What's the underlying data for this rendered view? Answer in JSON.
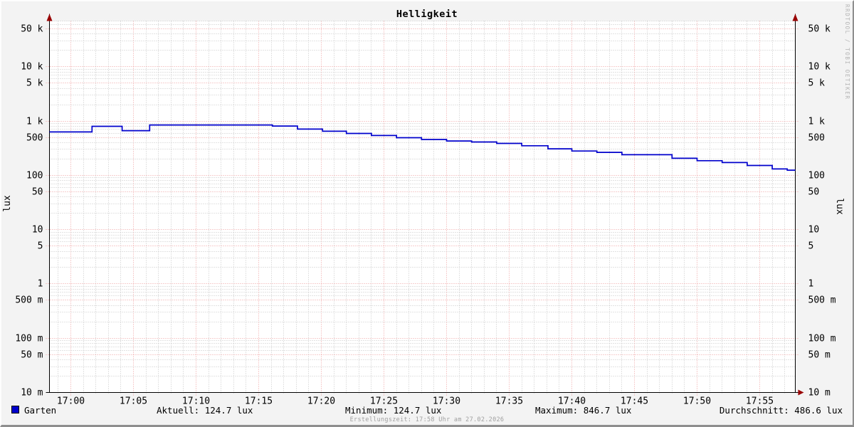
{
  "title": "Helligkeit",
  "watermark": "RRDTOOL / TOBI OETIKER",
  "y_axis": {
    "unit": "lux",
    "ticks": [
      {
        "value": 50000,
        "label": "50 k"
      },
      {
        "value": 10000,
        "label": "10 k"
      },
      {
        "value": 5000,
        "label": "5 k"
      },
      {
        "value": 1000,
        "label": "1 k"
      },
      {
        "value": 500,
        "label": "500"
      },
      {
        "value": 100,
        "label": "100"
      },
      {
        "value": 50,
        "label": "50"
      },
      {
        "value": 10,
        "label": "10"
      },
      {
        "value": 5,
        "label": "5"
      },
      {
        "value": 1,
        "label": "1"
      },
      {
        "value": 0.5,
        "label": "500 m"
      },
      {
        "value": 0.1,
        "label": "100 m"
      },
      {
        "value": 0.05,
        "label": "50 m"
      },
      {
        "value": 0.01,
        "label": "10 m"
      }
    ]
  },
  "x_axis": {
    "tick_minutes": [
      0,
      5,
      10,
      15,
      20,
      25,
      30,
      35,
      40,
      45,
      50,
      55
    ],
    "tick_labels": [
      "17:00",
      "17:05",
      "17:10",
      "17:15",
      "17:20",
      "17:25",
      "17:30",
      "17:35",
      "17:40",
      "17:45",
      "17:50",
      "17:55"
    ]
  },
  "chart_data": {
    "type": "line",
    "title": "Helligkeit",
    "xlabel": "",
    "ylabel": "lux",
    "y_scale": "log",
    "ylim": [
      0.01,
      70000
    ],
    "x_reference": "17:00",
    "x_window_minutes": [
      -1.7,
      57.84
    ],
    "grid": "on",
    "series": [
      {
        "name": "Garten",
        "color": "#0000cc",
        "style": "step",
        "points_t_min_value": [
          [
            -1.7,
            630
          ],
          [
            1.7,
            800
          ],
          [
            4.1,
            665
          ],
          [
            6.3,
            846.7
          ],
          [
            16.1,
            810
          ],
          [
            18.1,
            710
          ],
          [
            20.1,
            650
          ],
          [
            22,
            592
          ],
          [
            24,
            541
          ],
          [
            26,
            494
          ],
          [
            28,
            458
          ],
          [
            30,
            429
          ],
          [
            32,
            412
          ],
          [
            34,
            388
          ],
          [
            36,
            351
          ],
          [
            38.1,
            308
          ],
          [
            40,
            281
          ],
          [
            42,
            265
          ],
          [
            44,
            240
          ],
          [
            48,
            206
          ],
          [
            50,
            186
          ],
          [
            52,
            172
          ],
          [
            54,
            152
          ],
          [
            56,
            131
          ],
          [
            57.2,
            124.7
          ]
        ]
      }
    ]
  },
  "legend": {
    "series_label": "Garten",
    "stats": [
      "Aktuell: 124.7 lux",
      "Minimum: 124.7 lux",
      "Maximum: 846.7 lux",
      "Durchschnitt: 486.6 lux"
    ]
  },
  "footer": "Erstellungszeit: 17:58 Uhr am 27.02.2026",
  "colors": {
    "background": "#f3f3f3",
    "canvas": "#ffffff",
    "grid_major": "#ef9f9f",
    "grid_minor": "#c7c7c7",
    "axis": "#000000",
    "arrow": "#990000",
    "series": "#0000cc",
    "watermark": "#b4b4b4",
    "footer_text": "#a0a0a0"
  }
}
